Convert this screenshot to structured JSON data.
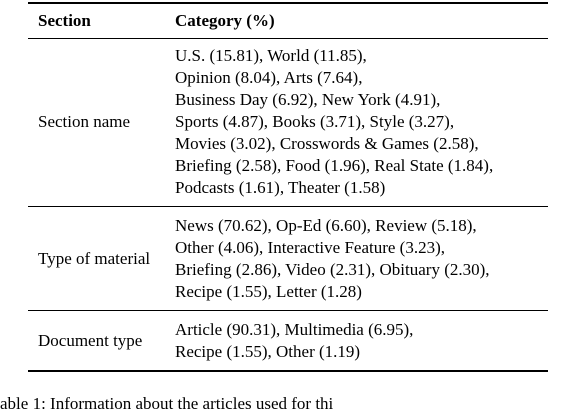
{
  "table": {
    "header": [
      "Section",
      "Category (%)"
    ],
    "rows": [
      [
        "Section name",
        [
          "U.S. (15.81), World (11.85),",
          "Opinion (8.04), Arts (7.64),",
          "Business Day (6.92), New York (4.91),",
          "Sports (4.87), Books (3.71), Style (3.27),",
          "Movies (3.02), Crosswords & Games (2.58),",
          "Briefing (2.58), Food (1.96), Real State (1.84),",
          "Podcasts (1.61), Theater (1.58)"
        ]
      ],
      [
        "Type of material",
        [
          "News (70.62), Op-Ed (6.60), Review (5.18),",
          "Other (4.06), Interactive Feature (3.23),",
          "Briefing (2.86), Video (2.31), Obituary (2.30),",
          "Recipe (1.55), Letter (1.28)"
        ]
      ],
      [
        "Document type",
        [
          "Article (90.31), Multimedia (6.95),",
          "Recipe (1.55), Other (1.19)"
        ]
      ]
    ]
  },
  "caption": "able 1: Information about the articles used for thi"
}
